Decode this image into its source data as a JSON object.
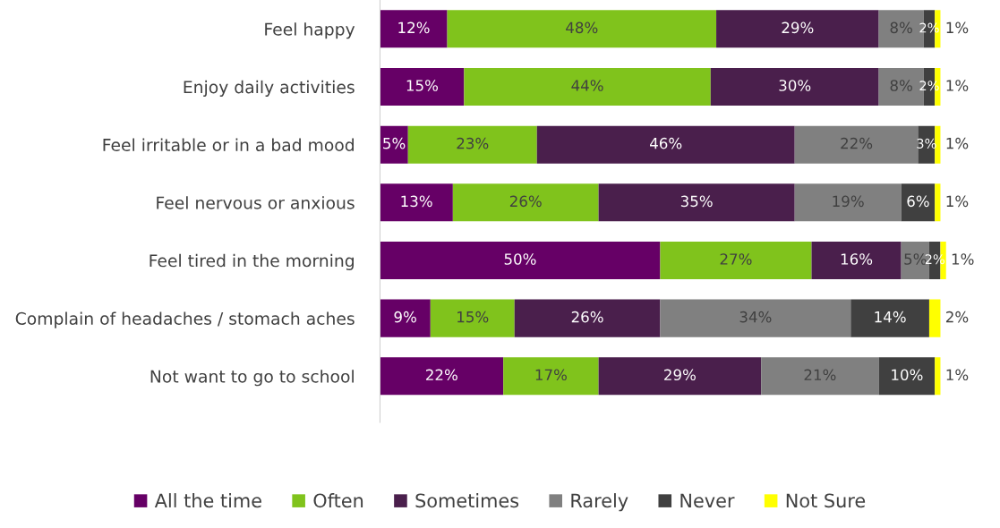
{
  "chart_data": {
    "type": "bar",
    "orientation": "horizontal",
    "stacked": true,
    "legend": "bottom",
    "grid": false,
    "categories": [
      "Feel happy",
      "Enjoy daily activities",
      "Feel irritable or in a bad mood",
      "Feel nervous or anxious",
      "Feel tired in the morning",
      "Complain of headaches / stomach aches",
      "Not want to go to school"
    ],
    "series": [
      {
        "name": "All the time",
        "color": "#660066",
        "values": [
          12,
          15,
          5,
          13,
          50,
          9,
          22
        ],
        "value_labels": [
          "12%",
          "15%",
          "5%",
          "13%",
          "50%",
          "9%",
          "22%"
        ]
      },
      {
        "name": "Often",
        "color": "#80c31c",
        "values": [
          48,
          44,
          23,
          26,
          27,
          15,
          17
        ],
        "value_labels": [
          "48%",
          "44%",
          "23%",
          "26%",
          "27%",
          "15%",
          "17%"
        ]
      },
      {
        "name": "Sometimes",
        "color": "#4a1f4c",
        "values": [
          29,
          30,
          46,
          35,
          16,
          26,
          29
        ],
        "value_labels": [
          "29%",
          "30%",
          "46%",
          "35%",
          "16%",
          "26%",
          "29%"
        ]
      },
      {
        "name": "Rarely",
        "color": "#808080",
        "values": [
          8,
          8,
          22,
          19,
          5,
          34,
          21
        ],
        "value_labels": [
          "8%",
          "8%",
          "22%",
          "19%",
          "5%",
          "34%",
          "21%"
        ]
      },
      {
        "name": "Never",
        "color": "#404040",
        "values": [
          2,
          2,
          3,
          6,
          2,
          14,
          10
        ],
        "value_labels": [
          "2%",
          "2%",
          "3%",
          "6%",
          "2%",
          "14%",
          "10%"
        ]
      },
      {
        "name": "Not Sure",
        "color": "#ffff00",
        "values": [
          1,
          1,
          1,
          1,
          1,
          2,
          1
        ],
        "value_labels": [
          "1%",
          "1%",
          "1%",
          "1%",
          "1%",
          "2%",
          "1%"
        ]
      }
    ]
  }
}
